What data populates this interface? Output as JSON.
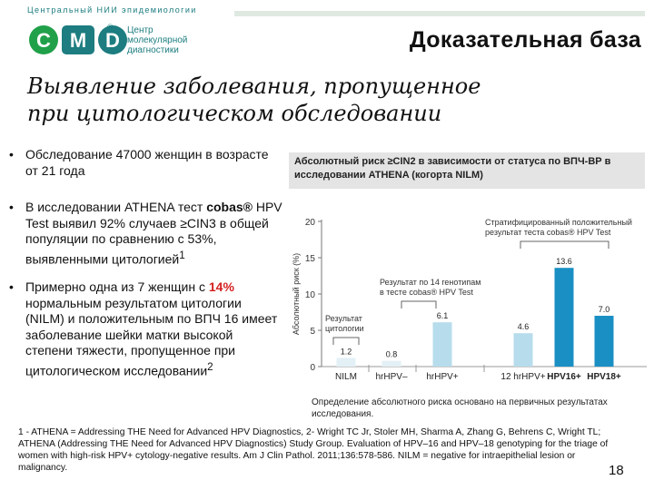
{
  "header": {
    "org_name": "Центральный НИИ эпидемиологии",
    "logo_text": "CMD",
    "logo_tm": "®",
    "logo_lines": [
      "Центр",
      "молекулярной",
      "диагностики"
    ],
    "slide_heading": "Доказательная база"
  },
  "subtitle": "Выявление заболевания, пропущенное при цитологическом обследовании",
  "bullets": {
    "b1": "Обследование 47000 женщин в возрасте от 21 года",
    "b2_prefix": "В исследовании ATHENA тест ",
    "b2_bold": "cobas®",
    "b2_rest": " HPV Test выявил 92% случаев ≥CIN3 в общей популяции по сравнению с 53%, выявленными цитологией",
    "b2_sup": "1",
    "b3_pre": "Примерно одна из 7 женщин с ",
    "b3_highlight": "14%",
    "b3_rest": " нормальным результатом цитологии (NILM) и положительным по ВПЧ 16 имеет заболевание шейки матки высокой степени тяжести, пропущенное при цитологическом исследовании",
    "b3_sup": "2"
  },
  "chart_data": {
    "type": "bar",
    "title": "Абсолютный риск ≥CIN2 в зависимости от статуса по ВПЧ-ВР в исследовании ATHENA (когорта NILM)",
    "ylabel": "Абсолютный риск (%)",
    "ylim": [
      0,
      20
    ],
    "yticks": [
      0,
      5,
      10,
      15,
      20
    ],
    "categories": [
      "NILM",
      "hrHPV–",
      "hrHPV+",
      "12 hrHPV+",
      "HPV16+",
      "HPV18+"
    ],
    "values": [
      1.2,
      0.8,
      6.1,
      4.6,
      13.6,
      7.0
    ],
    "value_labels": [
      "1.2",
      "0.8",
      "6.1",
      "4.6",
      "13.6",
      "7.0"
    ],
    "bar_colors": [
      "#e3f0f6",
      "#e3f0f6",
      "#b7dcec",
      "#b7dcec",
      "#1a8fc4",
      "#1a8fc4"
    ],
    "bold_categories": [
      false,
      false,
      false,
      false,
      true,
      true
    ],
    "annotations": [
      {
        "lines": [
          "Результат",
          "цитологии"
        ]
      },
      {
        "lines": [
          "Результат по 14 генотипам",
          "в тесте cobas® HPV Test"
        ]
      },
      {
        "lines": [
          "Стратифицированный положительный",
          "результат теста cobas® HPV Test"
        ]
      }
    ],
    "footnote": "Определение абсолютного риска основано на первичных результатах исследования."
  },
  "footnote": "1 - ATHENA = Addressing THE Need for Advanced HPV Diagnostics, 2- Wright TC Jr, Stoler MH, Sharma A, Zhang G, Behrens C, Wright TL; ATHENA (Addressing THE Need for Advanced HPV Diagnostics) Study Group. Evaluation of HPV–16 and HPV–18 genotyping for the triage of women with high-risk HPV+ cytology-negative results. Am J Clin Pathol. 2011;136:578-586.  NILM = negative for intraepithelial lesion or malignancy.",
  "page_number": "18",
  "colors": {
    "brand_teal": "#1d7d80",
    "brand_green": "#21a04a",
    "highlight_red": "#d41f1f",
    "bar_dark": "#1a8fc4",
    "bar_light": "#b7dcec"
  }
}
